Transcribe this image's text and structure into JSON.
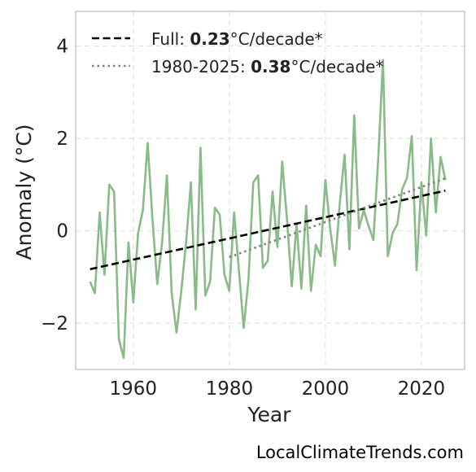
{
  "chart_data": {
    "type": "line",
    "xlabel": "Year",
    "ylabel": "Anomaly (°C)",
    "xlim": [
      1948,
      2029
    ],
    "ylim": [
      -3.0,
      4.75
    ],
    "xticks": [
      1960,
      1980,
      2000,
      2020
    ],
    "xtick_labels": [
      "1960",
      "1980",
      "2000",
      "2020"
    ],
    "yticks": [
      -2,
      0,
      2,
      4
    ],
    "ytick_labels": [
      "−2",
      "0",
      "2",
      "4"
    ],
    "grid": true,
    "legend_position": "top-left",
    "series": [
      {
        "kind": "anomaly",
        "color": "#88bb88",
        "x": [
          1951,
          1952,
          1953,
          1954,
          1955,
          1956,
          1957,
          1958,
          1959,
          1960,
          1961,
          1962,
          1963,
          1964,
          1965,
          1966,
          1967,
          1968,
          1969,
          1970,
          1971,
          1972,
          1973,
          1974,
          1975,
          1976,
          1977,
          1978,
          1979,
          1980,
          1981,
          1982,
          1983,
          1984,
          1985,
          1986,
          1987,
          1988,
          1989,
          1990,
          1991,
          1992,
          1993,
          1994,
          1995,
          1996,
          1997,
          1998,
          1999,
          2000,
          2001,
          2002,
          2003,
          2004,
          2005,
          2006,
          2007,
          2008,
          2009,
          2010,
          2011,
          2012,
          2013,
          2014,
          2015,
          2016,
          2017,
          2018,
          2019,
          2020,
          2021,
          2022,
          2023,
          2024,
          2025
        ],
        "y": [
          -1.1,
          -1.35,
          0.4,
          -0.95,
          1.0,
          0.85,
          -2.35,
          -2.75,
          -0.25,
          -1.55,
          -0.05,
          0.45,
          1.9,
          0.25,
          -1.15,
          -0.25,
          1.2,
          -1.35,
          -2.2,
          -1.3,
          -0.25,
          1.05,
          -1.7,
          1.8,
          -1.4,
          -1.1,
          0.5,
          0.35,
          -0.95,
          -1.3,
          0.4,
          -0.85,
          -2.1,
          -1.05,
          1.05,
          1.2,
          -0.8,
          -0.65,
          0.85,
          -0.35,
          1.5,
          0.25,
          -1.2,
          0.15,
          -1.25,
          0.55,
          -1.3,
          -0.3,
          -0.55,
          1.1,
          0.05,
          -0.75,
          0.6,
          1.65,
          -0.4,
          2.5,
          0.05,
          0.45,
          0.1,
          -0.2,
          1.55,
          3.7,
          -0.55,
          -0.05,
          0.15,
          0.9,
          1.15,
          2.05,
          -0.85,
          1.05,
          -0.1,
          2.0,
          0.4,
          1.6,
          1.1
        ]
      },
      {
        "kind": "trend-full",
        "name": "Full",
        "rate": "0.23",
        "unit": "°C/decade*",
        "color": "#000000",
        "x": [
          1951,
          2025
        ],
        "y": [
          -0.83,
          0.87
        ]
      },
      {
        "kind": "trend-recent",
        "name": "1980-2025",
        "rate": "0.38",
        "unit": "°C/decade*",
        "color": "#808080",
        "x": [
          1980,
          2025
        ],
        "y": [
          -0.57,
          1.14
        ]
      }
    ]
  },
  "credit": "LocalClimateTrends.com"
}
